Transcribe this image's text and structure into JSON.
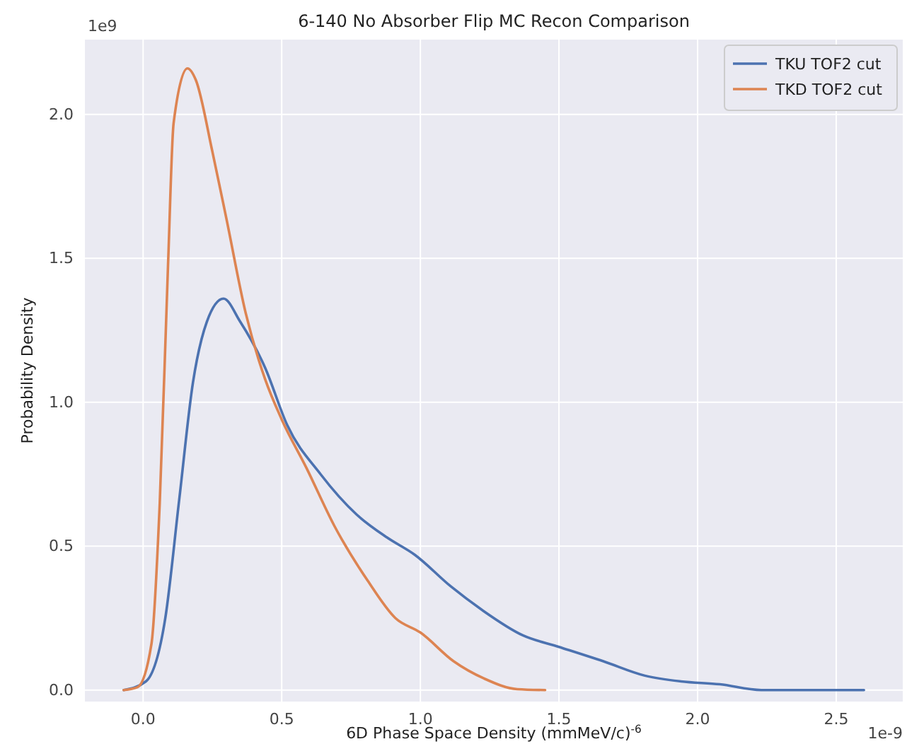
{
  "chart_data": {
    "type": "line",
    "title": "6-140 No Absorber Flip MC Recon Comparison",
    "xlabel": "6D Phase Space Density (mmMeV/c)$^{-6}$",
    "ylabel": "Probability Density",
    "annotations": [
      "1e9",
      "1e-9"
    ],
    "xlim": [
      -0.21,
      2.74
    ],
    "ylim": [
      -0.04,
      2.26
    ],
    "xticks": [
      {
        "value": 0,
        "label": "0.0"
      },
      {
        "value": 0.5,
        "label": "0.5"
      },
      {
        "value": 1,
        "label": "1.0"
      },
      {
        "value": 1.5,
        "label": "1.5"
      },
      {
        "value": 2,
        "label": "2.0"
      },
      {
        "value": 2.5,
        "label": "2.5"
      }
    ],
    "yticks": [
      {
        "value": 0,
        "label": "0.0"
      },
      {
        "value": 0.5,
        "label": "0.5"
      },
      {
        "value": 1,
        "label": "1.0"
      },
      {
        "value": 1.5,
        "label": "1.5"
      },
      {
        "value": 2,
        "label": "2.0"
      }
    ],
    "grid": true,
    "legend": "top right",
    "line_style": "solid",
    "marker": "none",
    "series": [
      {
        "name": "TKU TOF2 cut",
        "color": "#4c72b0",
        "x": [
          -0.07,
          0.01,
          0.08,
          0.13,
          0.18,
          0.23,
          0.29,
          0.35,
          0.44,
          0.52,
          0.64,
          0.77,
          0.88,
          0.98,
          1.11,
          1.22,
          1.37,
          1.5,
          1.66,
          1.81,
          1.94,
          2.08,
          2.23,
          2.6
        ],
        "values": [
          0,
          0.03,
          0.25,
          0.66,
          1.07,
          1.28,
          1.36,
          1.28,
          1.12,
          0.92,
          0.75,
          0.61,
          0.53,
          0.47,
          0.36,
          0.28,
          0.19,
          0.15,
          0.1,
          0.05,
          0.03,
          0.02,
          0,
          0
        ]
      },
      {
        "name": "TKD TOF2 cut",
        "color": "#dd8452",
        "x": [
          -0.07,
          -0.02,
          0.03,
          0.06,
          0.09,
          0.11,
          0.16,
          0.19,
          0.25,
          0.3,
          0.37,
          0.44,
          0.5,
          0.59,
          0.69,
          0.81,
          0.91,
          1.0,
          1.12,
          1.23,
          1.35,
          1.45
        ],
        "values": [
          0,
          0.01,
          0.16,
          0.65,
          1.48,
          1.97,
          2.16,
          2.12,
          1.87,
          1.64,
          1.31,
          1.08,
          0.94,
          0.77,
          0.57,
          0.38,
          0.25,
          0.2,
          0.1,
          0.04,
          0.003,
          0
        ]
      }
    ]
  }
}
